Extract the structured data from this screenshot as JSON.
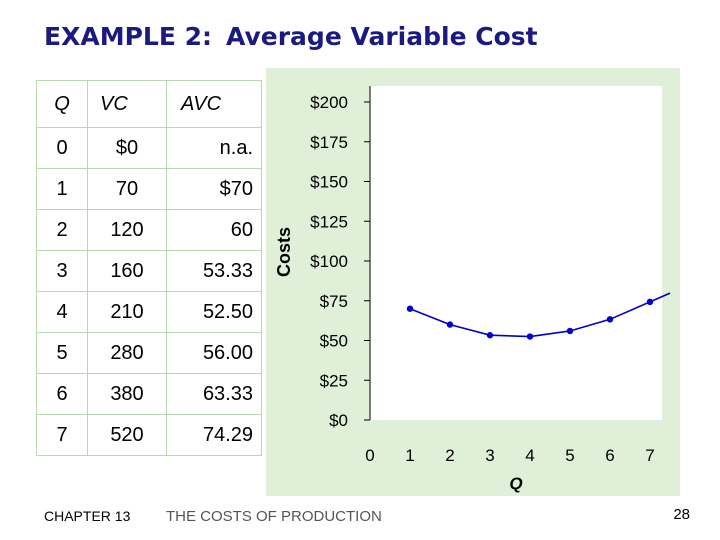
{
  "slide": {
    "title_prefix": "EXAMPLE 2:",
    "title_main": "Average Variable Cost",
    "footer_chapter": "CHAPTER 13",
    "footer_title": "THE COSTS OF PRODUCTION",
    "page_number": "28"
  },
  "table": {
    "headers": [
      "Q",
      "VC",
      "AVC"
    ],
    "rows": [
      [
        "0",
        "$0",
        "n.a."
      ],
      [
        "1",
        "70",
        "$70"
      ],
      [
        "2",
        "120",
        "60"
      ],
      [
        "3",
        "160",
        "53.33"
      ],
      [
        "4",
        "210",
        "52.50"
      ],
      [
        "5",
        "280",
        "56.00"
      ],
      [
        "6",
        "380",
        "63.33"
      ],
      [
        "7",
        "520",
        "74.29"
      ]
    ]
  },
  "colors": {
    "title": "#1a1a80",
    "curve": "#0000cc",
    "panel": "#e0f0d8",
    "plot": "#ffffff"
  },
  "chart_data": {
    "type": "line",
    "ylabel": "Costs",
    "xlabel": "Q",
    "x_ticks": [
      "0",
      "1",
      "2",
      "3",
      "4",
      "5",
      "6",
      "7"
    ],
    "y_ticks": [
      "$0",
      "$25",
      "$50",
      "$75",
      "$100",
      "$125",
      "$150",
      "$175",
      "$200"
    ],
    "xlim": [
      0,
      7.5
    ],
    "ylim": [
      0,
      200
    ],
    "grid": false,
    "series": [
      {
        "x": [
          1,
          2,
          3,
          4,
          5,
          6,
          7
        ],
        "values": [
          70,
          60,
          53.33,
          52.5,
          56,
          63.33,
          74.29
        ],
        "color": "#0000cc",
        "markers": true
      }
    ]
  }
}
